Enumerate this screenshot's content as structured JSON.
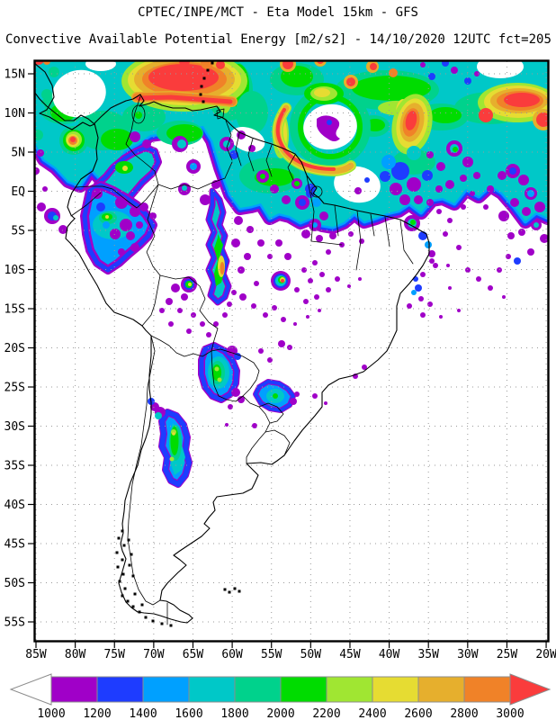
{
  "header": {
    "title": "CPTEC/INPE/MCT -  Eta Model 15km - GFS",
    "subtitle": "Convective Available Potential Energy [m2/s2] - 14/10/2020 12UTC fct=205"
  },
  "map": {
    "lat_labels": [
      "15N",
      "10N",
      "5N",
      "EQ",
      "5S",
      "10S",
      "15S",
      "20S",
      "25S",
      "30S",
      "35S",
      "40S",
      "45S",
      "50S",
      "55S"
    ],
    "lon_labels": [
      "85W",
      "80W",
      "75W",
      "70W",
      "65W",
      "60W",
      "55W",
      "50W",
      "45W",
      "40W",
      "35W",
      "30W",
      "25W",
      "20W"
    ]
  },
  "colorbar": {
    "values": [
      "1000",
      "1200",
      "1400",
      "1600",
      "1800",
      "2000",
      "2200",
      "2400",
      "2600",
      "2800",
      "3000"
    ],
    "palette": [
      "#FFFFFF",
      "#A000C8",
      "#1E3CFF",
      "#00A0FF",
      "#00C8C8",
      "#00D28C",
      "#00DC00",
      "#A0E632",
      "#E6DC32",
      "#E6AF2D",
      "#F08228",
      "#FA3C3C"
    ],
    "segments": [
      {
        "range": "< 1000",
        "color": "#FFFFFF"
      },
      {
        "range": "1000-1200",
        "color": "#A000C8"
      },
      {
        "range": "1200-1400",
        "color": "#1E3CFF"
      },
      {
        "range": "1400-1600",
        "color": "#00A0FF"
      },
      {
        "range": "1600-1800",
        "color": "#00C8C8"
      },
      {
        "range": "1800-2000",
        "color": "#00D28C"
      },
      {
        "range": "2000-2200",
        "color": "#00DC00"
      },
      {
        "range": "2200-2400",
        "color": "#A0E632"
      },
      {
        "range": "2400-2600",
        "color": "#E6DC32"
      },
      {
        "range": "2600-2800",
        "color": "#E6AF2D"
      },
      {
        "range": "2800-3000",
        "color": "#F08228"
      },
      {
        "range": "> 3000",
        "color": "#FA3C3C"
      }
    ]
  },
  "chart_data": {
    "type": "heatmap",
    "variable": "Convective Available Potential Energy",
    "units": "m2/s2",
    "model": "Eta Model 15km - GFS",
    "institution": "CPTEC/INPE/MCT",
    "valid": "14/10/2020 12UTC fct=205",
    "lon_ticks": [
      "85W",
      "80W",
      "75W",
      "70W",
      "65W",
      "60W",
      "55W",
      "50W",
      "45W",
      "40W",
      "35W",
      "30W",
      "25W",
      "20W"
    ],
    "lat_ticks": [
      "15N",
      "10N",
      "5N",
      "EQ",
      "5S",
      "10S",
      "15S",
      "20S",
      "25S",
      "30S",
      "35S",
      "40S",
      "45S",
      "50S",
      "55S"
    ],
    "contour_levels": [
      1000,
      1200,
      1400,
      1600,
      1800,
      2000,
      2200,
      2400,
      2600,
      2800,
      3000
    ],
    "legend_position": "bottom",
    "grid": "dotted"
  }
}
